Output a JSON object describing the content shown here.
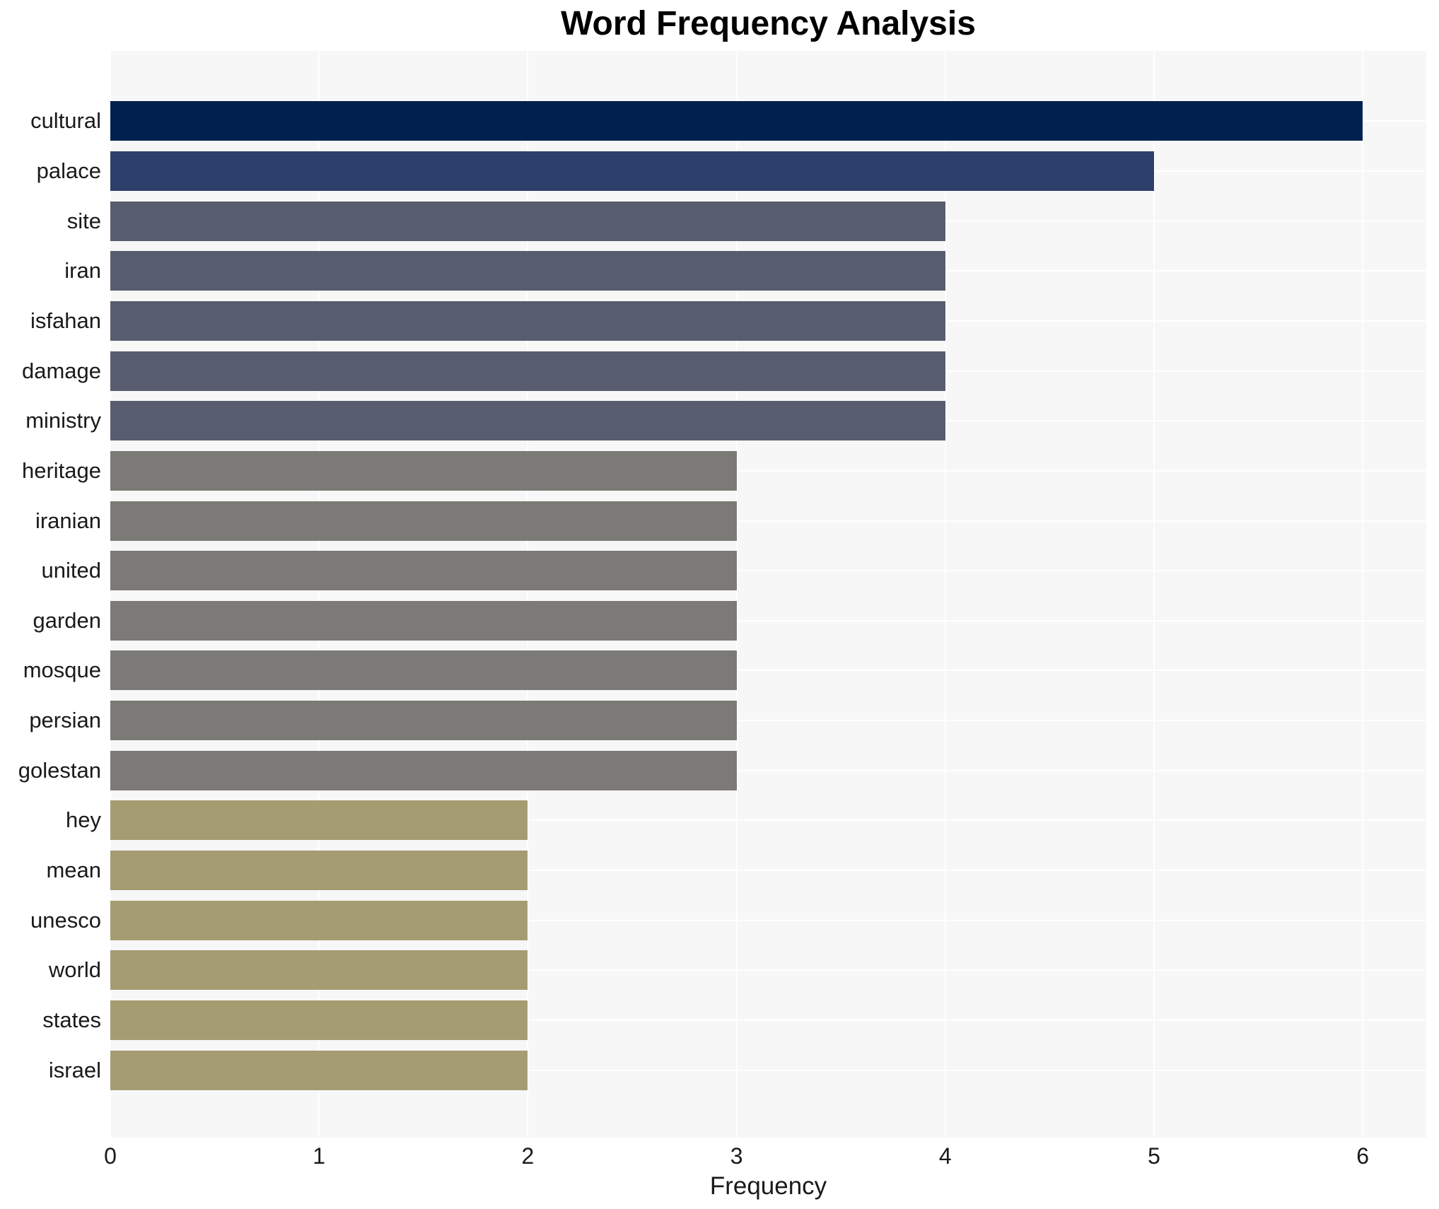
{
  "title": "Word Frequency Analysis",
  "chart_data": {
    "type": "bar",
    "orientation": "horizontal",
    "title": "Word Frequency Analysis",
    "xlabel": "Frequency",
    "ylabel": "",
    "xlim": [
      0,
      6.3
    ],
    "xticks": [
      0,
      1,
      2,
      3,
      4,
      5,
      6
    ],
    "grid": true,
    "legend": false,
    "plot_background": "#f7f7f7",
    "grid_color": "#ffffff",
    "text_color": "#1a1a1a",
    "categories": [
      "cultural",
      "palace",
      "site",
      "iran",
      "isfahan",
      "damage",
      "ministry",
      "heritage",
      "iranian",
      "united",
      "garden",
      "mosque",
      "persian",
      "golestan",
      "hey",
      "mean",
      "unesco",
      "world",
      "states",
      "israel"
    ],
    "values": [
      6,
      5,
      4,
      4,
      4,
      4,
      4,
      3,
      3,
      3,
      3,
      3,
      3,
      3,
      2,
      2,
      2,
      2,
      2,
      2
    ],
    "bar_colors": [
      "#00214d",
      "#2d3f6b",
      "#575d6e",
      "#575d6e",
      "#575d6e",
      "#575d6e",
      "#575d6e",
      "#7b7a76",
      "#7b7a76",
      "#7b7a76",
      "#7b7a76",
      "#7b7a76",
      "#7b7a76",
      "#7b7a76",
      "#a59c72",
      "#a59c72",
      "#a59c72",
      "#a59c72",
      "#a59c72",
      "#a59c72"
    ]
  }
}
